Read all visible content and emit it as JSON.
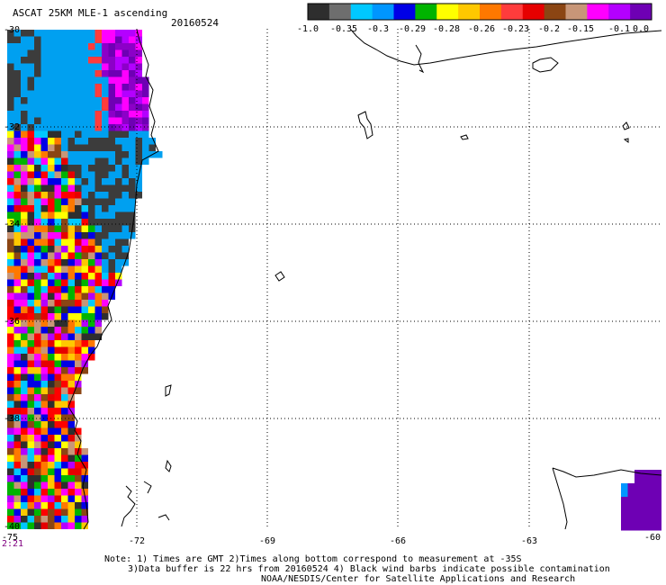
{
  "title": "ASCAT 25KM MLE-1 ascending",
  "date": "20160524",
  "colorbar": {
    "labels": [
      "-1.0",
      "-0.35",
      "-0.3",
      "-0.29",
      "-0.28",
      "-0.26",
      "-0.23",
      "-0.2",
      "-0.15",
      "-0.1",
      "0.0"
    ],
    "colors": [
      "#2e2e2e",
      "#6e6e6e",
      "#00c8ff",
      "#0096ff",
      "#0000e6",
      "#00b400",
      "#ffff00",
      "#ffc800",
      "#ff7800",
      "#ff3c3c",
      "#e60000",
      "#8b4513",
      "#c89678",
      "#ff00ff",
      "#b400ff",
      "#6e00b4"
    ]
  },
  "axes": {
    "lat_labels": [
      "-30",
      "-32",
      "-34",
      "-36",
      "-38",
      "-40"
    ],
    "lon_labels": [
      "-75",
      "-72",
      "-69",
      "-66",
      "-63",
      "-60"
    ]
  },
  "time_label": "2:21",
  "notes": {
    "line1": "Note: 1) Times are GMT 2)Times along bottom correspond to measurement at -35S",
    "line2": "3)Data buffer is 22 hrs from 20160524 4) Black wind barbs indicate possible contamination",
    "line3": "NOAA/NESDIS/Center for Satellite Applications and Research"
  }
}
